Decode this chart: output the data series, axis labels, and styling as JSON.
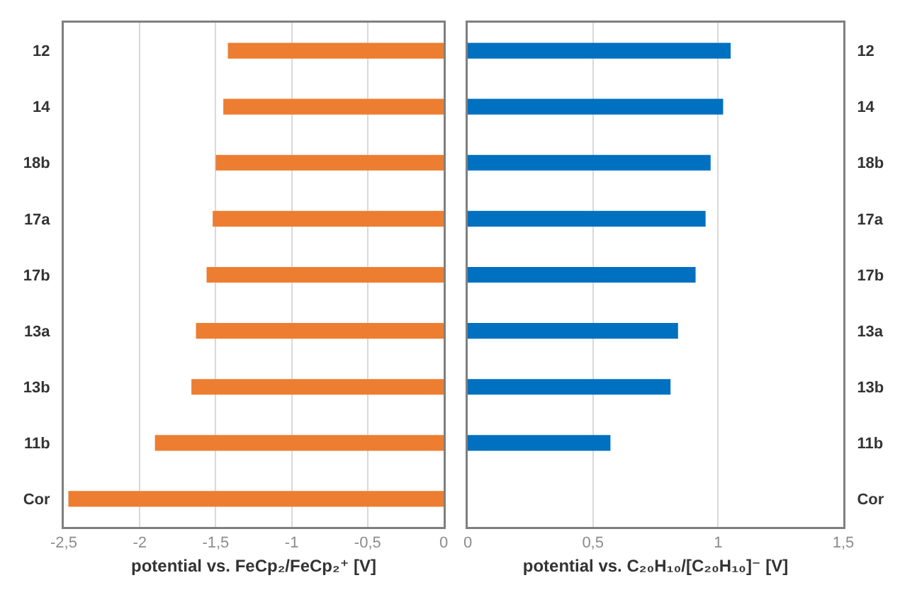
{
  "chart_data": [
    {
      "type": "bar",
      "orientation": "horizontal",
      "categories": [
        "12",
        "14",
        "18b",
        "17a",
        "17b",
        "13a",
        "13b",
        "11b",
        "Cor"
      ],
      "series": [
        {
          "color": "#ed7d31",
          "values": [
            -1.42,
            -1.45,
            -1.5,
            -1.52,
            -1.56,
            -1.63,
            -1.66,
            -1.9,
            -2.47
          ]
        }
      ],
      "xlabel": "potential vs. FeCp₂/FeCp₂⁺ [V]",
      "xlim": [
        -2.5,
        0
      ],
      "xticks": [
        {
          "value": -2.5,
          "label": "-2,5"
        },
        -2,
        {
          "value": -1.5,
          "label": "-1,5"
        },
        -1,
        {
          "value": -0.5,
          "label": "-0,5"
        },
        0
      ],
      "grid": "x"
    },
    {
      "type": "bar",
      "orientation": "horizontal",
      "categories": [
        "12",
        "14",
        "18b",
        "17a",
        "17b",
        "13a",
        "13b",
        "11b",
        "Cor"
      ],
      "series": [
        {
          "color": "#0070c0",
          "values": [
            1.05,
            1.02,
            0.97,
            0.95,
            0.91,
            0.84,
            0.81,
            0.57,
            null
          ]
        }
      ],
      "xlabel": "potential vs. C₂₀H₁₀/[C₂₀H₁₀]⁻ [V]",
      "xlim": [
        0,
        1.5
      ],
      "xticks": [
        0,
        {
          "value": 0.5,
          "label": "0,5"
        },
        1,
        {
          "value": 1.5,
          "label": "1,5"
        }
      ],
      "grid": "x"
    }
  ]
}
